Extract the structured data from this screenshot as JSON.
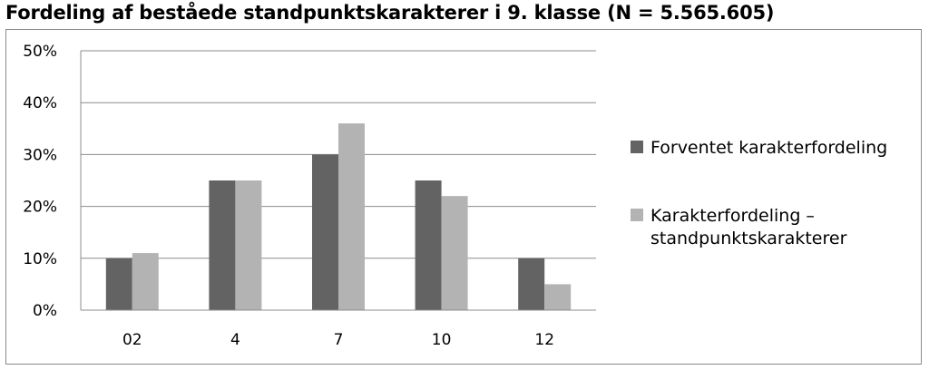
{
  "chart_data": {
    "type": "bar",
    "title": "Fordeling af beståede standpunktskarakterer i 9. klasse (N = 5.565.605)",
    "categories": [
      "02",
      "4",
      "7",
      "10",
      "12"
    ],
    "series": [
      {
        "name": "Forventet karakterfordeling",
        "values": [
          10,
          25,
          30,
          25,
          10
        ],
        "color": "#636363"
      },
      {
        "name": "Karakterfordeling – standpunktskarakterer",
        "name_lines": [
          "Karakterfordeling –",
          "standpunktskarakterer"
        ],
        "values": [
          11,
          25,
          36,
          22,
          5
        ],
        "color": "#b3b3b3"
      }
    ],
    "ylim": [
      0,
      50
    ],
    "yticks": [
      0,
      10,
      20,
      30,
      40,
      50
    ],
    "ytick_labels": [
      "0%",
      "10%",
      "20%",
      "30%",
      "40%",
      "50%"
    ],
    "grid": true,
    "legend_position": "right",
    "xlabel": "",
    "ylabel": ""
  }
}
